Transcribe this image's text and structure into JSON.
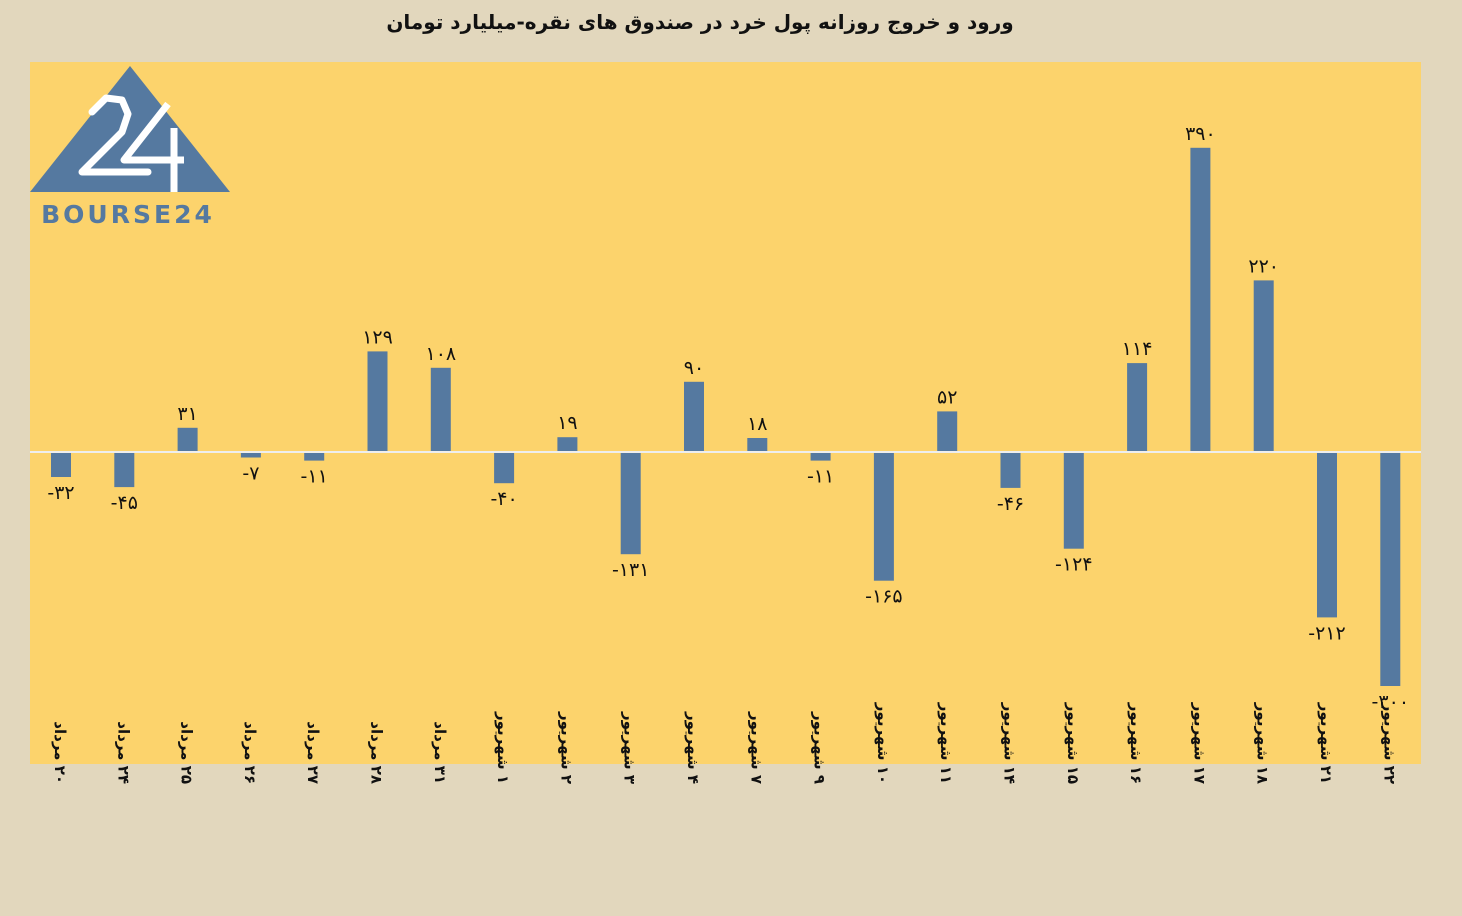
{
  "chart_data": {
    "type": "bar",
    "title": "ورود و خروج روزانه پول خرد در صندوق های نقره-میلیارد تومان",
    "xlabel": "",
    "ylabel": "",
    "ylim": [
      -370,
      430
    ],
    "grid": false,
    "legend": "none",
    "categories": [
      "۲۰ مرداد",
      "۲۴ مرداد",
      "۲۵ مرداد",
      "۲۶ مرداد",
      "۲۷ مرداد",
      "۲۸ مرداد",
      "۳۱ مرداد",
      "۱ شهریور",
      "۲ شهریور",
      "۳ شهریور",
      "۴ شهریور",
      "۷ شهریور",
      "۹ شهریور",
      "۱۰ شهریور",
      "۱۱ شهریور",
      "۱۴ شهریور",
      "۱۵ شهریور",
      "۱۶ شهریور",
      "۱۷ شهریور",
      "۱۸ شهریور",
      "۲۱ شهریور",
      "۲۲ شهریور"
    ],
    "values": [
      -32,
      -45,
      31,
      -7,
      -11,
      129,
      108,
      -40,
      19,
      -131,
      90,
      18,
      -11,
      -165,
      52,
      -46,
      -124,
      114,
      390,
      220,
      -212,
      -300
    ],
    "data_labels": [
      "-۳۲",
      "-۴۵",
      "۳۱",
      "-۷",
      "-۱۱",
      "۱۲۹",
      "۱۰۸",
      "-۴۰",
      "۱۹",
      "-۱۳۱",
      "۹۰",
      "۱۸",
      "-۱۱",
      "-۱۶۵",
      "۵۲",
      "-۴۶",
      "-۱۲۴",
      "۱۱۴",
      "۳۹۰",
      "۲۲۰",
      "-۲۱۲",
      "-۳۰۰"
    ]
  },
  "logo": {
    "text": "BOURSE24",
    "mark": "24"
  },
  "colors": {
    "background": "#e2d7bd",
    "plot_area": "#fcd36c",
    "bar": "#5579a0",
    "baseline": "#eeeeee",
    "logo": "#5579a0"
  }
}
